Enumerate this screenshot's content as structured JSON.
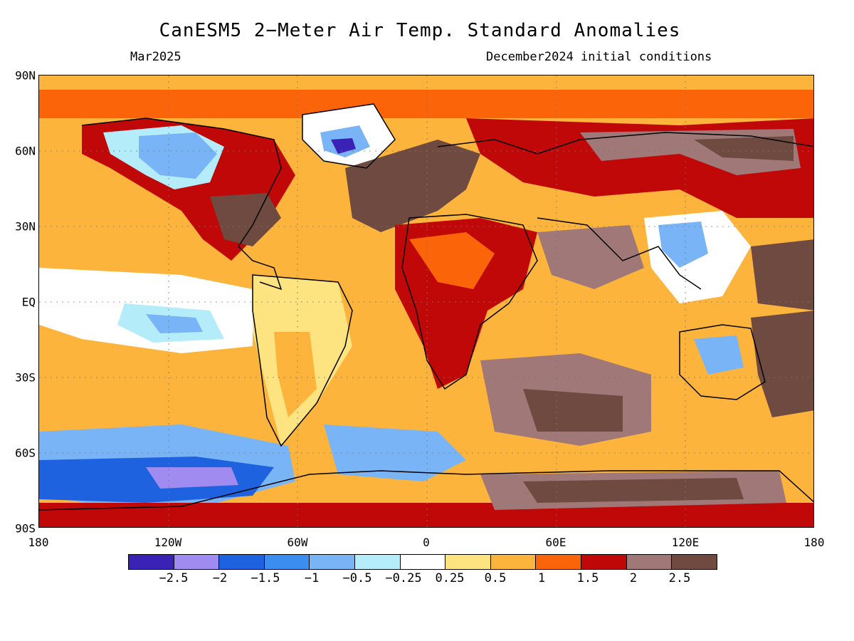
{
  "title": "CanESM5 2−Meter Air Temp. Standard Anomalies",
  "subtitle_left": "Mar2025",
  "subtitle_right": "December2024 initial conditions",
  "latitude_labels": [
    "90N",
    "60N",
    "30N",
    "EQ",
    "30S",
    "60S",
    "90S"
  ],
  "longitude_labels": [
    "180",
    "120W",
    "60W",
    "0",
    "60E",
    "120E",
    "180"
  ],
  "colorbar": {
    "colors": [
      "#3b22b6",
      "#a08cf0",
      "#1f62e0",
      "#3b8ef0",
      "#78b4f6",
      "#b4ecfa",
      "#ffffff",
      "#fde481",
      "#fdb43c",
      "#fb6408",
      "#c00808",
      "#a07878",
      "#6e4a40"
    ],
    "labels": [
      "−2.5",
      "−2",
      "−1.5",
      "−1",
      "−0.5",
      "−0.25",
      "0.25",
      "0.5",
      "1",
      "1.5",
      "2",
      "2.5"
    ]
  }
}
